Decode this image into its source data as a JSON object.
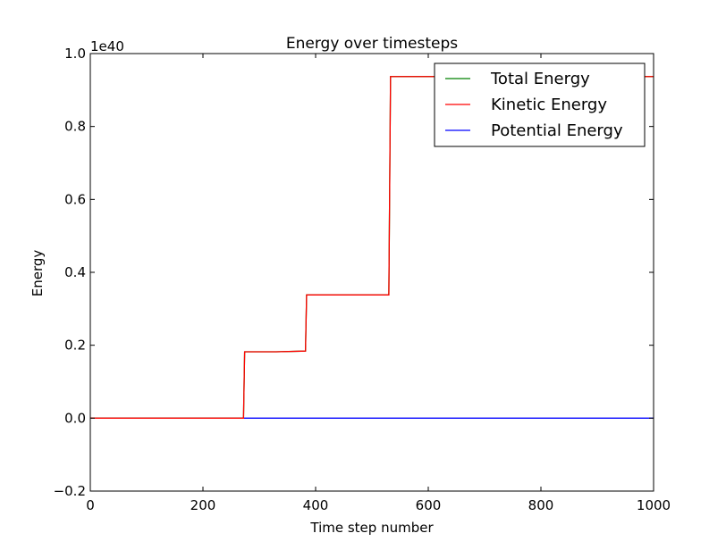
{
  "chart_data": {
    "type": "line",
    "title": "Energy over timesteps",
    "xlabel": "Time step number",
    "ylabel": "Energy",
    "offset_label": "1e40",
    "xlim": [
      0,
      1000
    ],
    "ylim": [
      -0.2,
      1.0
    ],
    "xticks": [
      "0",
      "200",
      "400",
      "600",
      "800",
      "1000"
    ],
    "yticks": [
      "−0.2",
      "0.0",
      "0.2",
      "0.4",
      "0.6",
      "0.8",
      "1.0"
    ],
    "grid": false,
    "legend_position": "top-right",
    "series": [
      {
        "name": "Total Energy",
        "color": "#008000",
        "points": [
          [
            0,
            0
          ],
          [
            272,
            0
          ],
          [
            274,
            0.182
          ],
          [
            330,
            0.182
          ],
          [
            382,
            0.184
          ],
          [
            384,
            0.338
          ],
          [
            530,
            0.338
          ],
          [
            533,
            0.937
          ],
          [
            1000,
            0.937
          ]
        ]
      },
      {
        "name": "Kinetic Energy",
        "color": "#ff0000",
        "points": [
          [
            0,
            0
          ],
          [
            272,
            0
          ],
          [
            274,
            0.182
          ],
          [
            330,
            0.182
          ],
          [
            382,
            0.184
          ],
          [
            384,
            0.338
          ],
          [
            530,
            0.338
          ],
          [
            533,
            0.937
          ],
          [
            1000,
            0.937
          ]
        ]
      },
      {
        "name": "Potential Energy",
        "color": "#0000ff",
        "points": [
          [
            0,
            0
          ],
          [
            1000,
            0
          ]
        ]
      }
    ]
  }
}
